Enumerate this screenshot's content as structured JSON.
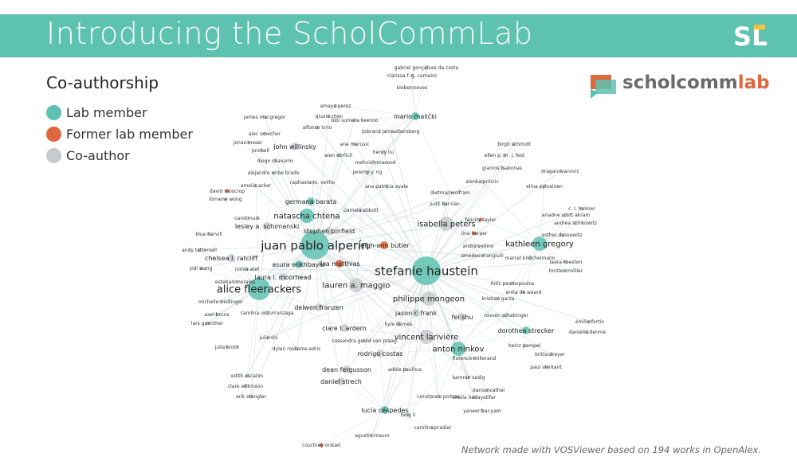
{
  "banner": {
    "title": "Introducing the ScholCommLab",
    "logo_text": "SL"
  },
  "brand": {
    "prefix": "scholcomm",
    "suffix": "lab"
  },
  "legend": {
    "title": "Co-authorship",
    "items": [
      {
        "label": "Lab member",
        "color": "#5ec2b1"
      },
      {
        "label": "Former lab member",
        "color": "#e0663d"
      },
      {
        "label": "Co-author",
        "color": "#c7cbcd"
      }
    ]
  },
  "network": {
    "colors": {
      "lab": "#5ec2b1",
      "former": "#e0663d",
      "coauthor": "#c7cbcd",
      "edge": "#b9e6de"
    },
    "nodes": [
      {
        "label": "juan pablo alperín",
        "type": "lab",
        "size": "xl"
      },
      {
        "label": "stefanie haustein",
        "type": "lab",
        "size": "xl"
      },
      {
        "label": "alice fleerackers",
        "type": "lab",
        "size": "lg"
      },
      {
        "label": "lauren a. maggio",
        "type": "coauthor",
        "size": "md"
      },
      {
        "label": "kathleen gregory",
        "type": "lab",
        "size": "md"
      },
      {
        "label": "isabella peters",
        "type": "coauthor",
        "size": "md"
      },
      {
        "label": "natascha chtena",
        "type": "lab",
        "size": "md"
      },
      {
        "label": "germana barata",
        "type": "lab",
        "size": "sm"
      },
      {
        "label": "vincent larivière",
        "type": "coauthor",
        "size": "md"
      },
      {
        "label": "anton ninkov",
        "type": "lab",
        "size": "md"
      },
      {
        "label": "philippe mongeon",
        "type": "coauthor",
        "size": "md"
      },
      {
        "label": "lucía céspedes",
        "type": "lab",
        "size": "sm"
      },
      {
        "label": "asura enkhbayar",
        "type": "lab",
        "size": "sm"
      },
      {
        "label": "lisa matthias",
        "type": "former",
        "size": "sm"
      },
      {
        "label": "leigh-ann butler",
        "type": "former",
        "size": "sm"
      },
      {
        "label": "stephen pinfield",
        "type": "coauthor",
        "size": "sm"
      },
      {
        "label": "lesley a. schimanski",
        "type": "coauthor",
        "size": "sm"
      },
      {
        "label": "john willinsky",
        "type": "coauthor",
        "size": "sm"
      },
      {
        "label": "mario malički",
        "type": "lab",
        "size": "sm"
      },
      {
        "label": "dorothea strecker",
        "type": "lab",
        "size": "sm"
      },
      {
        "label": "felicity tayler",
        "type": "former",
        "size": "xs"
      },
      {
        "label": "lina harper",
        "type": "former",
        "size": "xs"
      },
      {
        "label": "jason r. frank",
        "type": "coauthor",
        "size": "sm"
      },
      {
        "label": "chelsea l. ratcliff",
        "type": "coauthor",
        "size": "sm"
      },
      {
        "label": "laura l. moorhead",
        "type": "coauthor",
        "size": "sm"
      },
      {
        "label": "rodrigo costas",
        "type": "coauthor",
        "size": "sm"
      },
      {
        "label": "fei shu",
        "type": "coauthor",
        "size": "sm"
      },
      {
        "label": "delwen franzen",
        "type": "coauthor",
        "size": "sm"
      },
      {
        "label": "clare l. ardern",
        "type": "coauthor",
        "size": "sm"
      },
      {
        "label": "dean fergusson",
        "type": "coauthor",
        "size": "sm"
      },
      {
        "label": "daniel strech",
        "type": "coauthor",
        "size": "sm"
      },
      {
        "label": "pamela abbott",
        "type": "coauthor",
        "size": "xs"
      },
      {
        "label": "heinz pampel",
        "type": "coauthor",
        "size": "xs"
      },
      {
        "label": "julie shi",
        "type": "coauthor",
        "size": "xs"
      },
      {
        "label": "dylan roskams-edris",
        "type": "coauthor",
        "size": "xs"
      },
      {
        "label": "cassandra gould van praag",
        "type": "coauthor",
        "size": "xs"
      },
      {
        "label": "carolina unzurrunzaga",
        "type": "coauthor",
        "size": "xs"
      },
      {
        "label": "kristian garza",
        "type": "coauthor",
        "size": "xs"
      },
      {
        "label": "rouven schabinger",
        "type": "coauthor",
        "size": "xs"
      },
      {
        "label": "constance poitras",
        "type": "coauthor",
        "size": "xs"
      },
      {
        "label": "danise cathel",
        "type": "coauthor",
        "size": "xs"
      },
      {
        "label": "kamran sedig",
        "type": "coauthor",
        "size": "xs"
      },
      {
        "label": "florence millerand",
        "type": "coauthor",
        "size": "xs"
      },
      {
        "label": "adèle paulhus",
        "type": "coauthor",
        "size": "xs"
      },
      {
        "label": "kyle demes",
        "type": "coauthor",
        "size": "xs"
      },
      {
        "label": "david moscrop",
        "type": "former",
        "size": "xs"
      },
      {
        "label": "courtney orstad",
        "type": "former",
        "size": "xs"
      },
      {
        "label": "axel bruns",
        "type": "coauthor",
        "size": "xs"
      },
      {
        "label": "lars guenther",
        "type": "coauthor",
        "size": "xs"
      },
      {
        "label": "julia krolik",
        "type": "coauthor",
        "size": "xs"
      },
      {
        "label": "edith escalón",
        "type": "coauthor",
        "size": "xs"
      },
      {
        "label": "clare wilkinson",
        "type": "coauthor",
        "size": "xs"
      },
      {
        "label": "erik stengler",
        "type": "coauthor",
        "size": "xs"
      },
      {
        "label": "blue harvill",
        "type": "coauthor",
        "size": "xs"
      },
      {
        "label": "yidi wang",
        "type": "coauthor",
        "size": "xs"
      },
      {
        "label": "nohla atef",
        "type": "coauthor",
        "size": "xs"
      },
      {
        "label": "andy tattersall",
        "type": "coauthor",
        "size": "xs"
      },
      {
        "label": "carol mulé",
        "type": "coauthor",
        "size": "xs"
      },
      {
        "label": "amelia acker",
        "type": "coauthor",
        "size": "xs"
      },
      {
        "label": "lorraine wong",
        "type": "coauthor",
        "size": "xs"
      },
      {
        "label": "alejandro uribe tirado",
        "type": "coauthor",
        "size": "xs"
      },
      {
        "label": "raphaela m. veilho",
        "type": "coauthor",
        "size": "xs"
      },
      {
        "label": "diego chavarro",
        "type": "coauthor",
        "size": "xs"
      },
      {
        "label": "jon bell",
        "type": "coauthor",
        "size": "xs"
      },
      {
        "label": "jonas moser",
        "type": "coauthor",
        "size": "xs"
      },
      {
        "label": "alec smecher",
        "type": "coauthor",
        "size": "xs"
      },
      {
        "label": "james macgregor",
        "type": "coauthor",
        "size": "xs"
      },
      {
        "label": "alfonso lorio",
        "type": "coauthor",
        "size": "xs"
      },
      {
        "label": "qiuxia chen",
        "type": "coauthor",
        "size": "xs"
      },
      {
        "label": "amaya perez",
        "type": "coauthor",
        "size": "xs"
      },
      {
        "label": "bibi sumera keenoo",
        "type": "coauthor",
        "size": "xs"
      },
      {
        "label": "ana marusic",
        "type": "coauthor",
        "size": "xs"
      },
      {
        "label": "alan ebrlich",
        "type": "coauthor",
        "size": "xs"
      },
      {
        "label": "henry liu",
        "type": "coauthor",
        "size": "xs"
      },
      {
        "label": "mehvish masood",
        "type": "coauthor",
        "size": "xs"
      },
      {
        "label": "jeremy y. ng",
        "type": "coauthor",
        "size": "xs"
      },
      {
        "label": "ana patricia ayala",
        "type": "coauthor",
        "size": "xs"
      },
      {
        "label": "ijsbrand jan aalbersberg",
        "type": "coauthor",
        "size": "xs"
      },
      {
        "label": "gabriel gonçalves da costa",
        "type": "coauthor",
        "size": "xs"
      },
      {
        "label": "clarissa f. g. carneiro",
        "type": "coauthor",
        "size": "xs"
      },
      {
        "label": "kleber neves",
        "type": "coauthor",
        "size": "xs"
      },
      {
        "label": "dietmar wolfram",
        "type": "coauthor",
        "size": "xs"
      },
      {
        "label": "judit bar-ilan",
        "type": "coauthor",
        "size": "xs"
      },
      {
        "label": "birgit schmidt",
        "type": "coauthor",
        "size": "xs"
      },
      {
        "label": "ellen p. m. j. fest",
        "type": "coauthor",
        "size": "xs"
      },
      {
        "label": "giannis tsakonas",
        "type": "coauthor",
        "size": "xs"
      },
      {
        "label": "alenka princic",
        "type": "coauthor",
        "size": "xs"
      },
      {
        "label": "dragan ivanović",
        "type": "coauthor",
        "size": "xs"
      },
      {
        "label": "elina pylvainen",
        "type": "coauthor",
        "size": "xs"
      },
      {
        "label": "ariadne scott akram",
        "type": "coauthor",
        "size": "xs"
      },
      {
        "label": "andrea schikowitz",
        "type": "coauthor",
        "size": "xs"
      },
      {
        "label": "esther dassewitz",
        "type": "coauthor",
        "size": "xs"
      },
      {
        "label": "c. l. holmer",
        "type": "coauthor",
        "size": "xs"
      },
      {
        "label": "laura koesten",
        "type": "coauthor",
        "size": "xs"
      },
      {
        "label": "torsten möller",
        "type": "coauthor",
        "size": "xs"
      },
      {
        "label": "andré vellino",
        "type": "coauthor",
        "size": "xs"
      },
      {
        "label": "amedeo d'angiulli",
        "type": "coauthor",
        "size": "xs"
      },
      {
        "label": "fotis psomopoulos",
        "type": "coauthor",
        "size": "xs"
      },
      {
        "label": "anita de waard",
        "type": "coauthor",
        "size": "xs"
      },
      {
        "label": "émilie fortin",
        "type": "coauthor",
        "size": "xs"
      },
      {
        "label": "danielle dennie",
        "type": "coauthor",
        "size": "xs"
      },
      {
        "label": "britta dreyer",
        "type": "coauthor",
        "size": "xs"
      },
      {
        "label": "paul vierkant",
        "type": "coauthor",
        "size": "xs"
      },
      {
        "label": "sheila hedayatifar",
        "type": "coauthor",
        "size": "xs"
      },
      {
        "label": "yaneer bar-yam",
        "type": "coauthor",
        "size": "xs"
      },
      {
        "label": "bing li",
        "type": "coauthor",
        "size": "xs"
      },
      {
        "label": "carolina pradier",
        "type": "coauthor",
        "size": "xs"
      },
      {
        "label": "agustin mauro",
        "type": "coauthor",
        "size": "xs"
      },
      {
        "label": "michelle riedlinger",
        "type": "coauthor",
        "size": "xs"
      },
      {
        "label": "esteban morales",
        "type": "coauthor",
        "size": "xs"
      },
      {
        "label": "marcel knöchelmann",
        "type": "coauthor",
        "size": "xs"
      }
    ]
  },
  "footnote": "Network made with VOSViewer based on 194 works in OpenAlex."
}
